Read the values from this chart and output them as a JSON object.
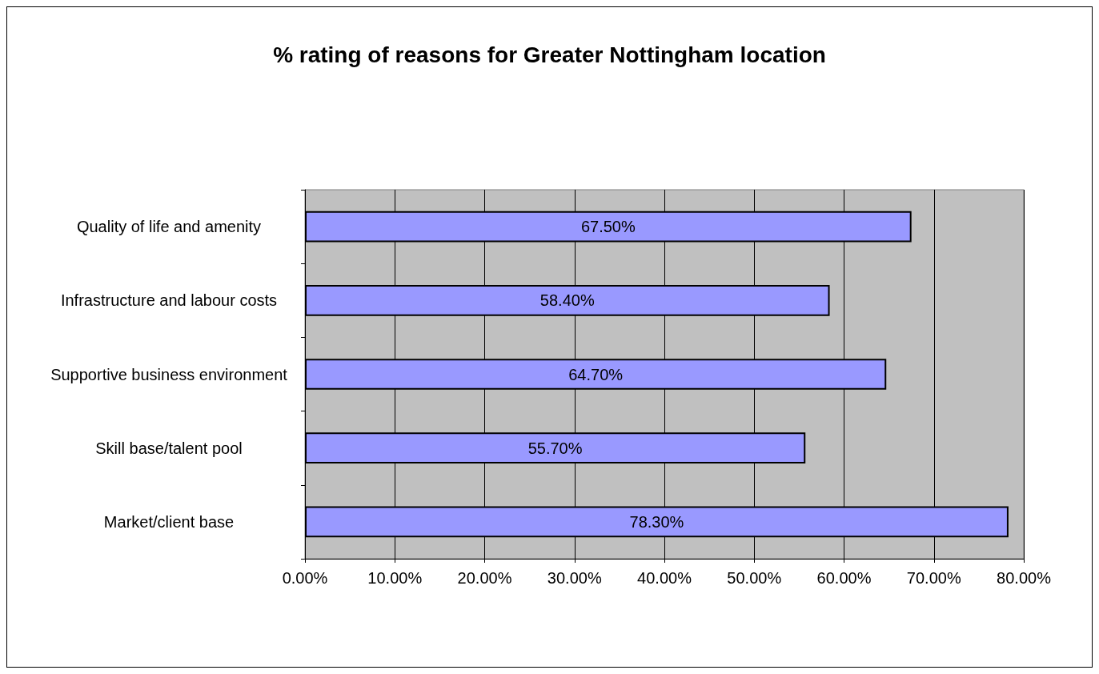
{
  "chart_data": {
    "type": "bar",
    "orientation": "horizontal",
    "title": "% rating of reasons for Greater Nottingham location",
    "categories": [
      "Quality of life and amenity",
      "Infrastructure and labour costs",
      "Supportive business environment",
      "Skill base/talent pool",
      "Market/client base"
    ],
    "values": [
      67.5,
      58.4,
      64.7,
      55.7,
      78.3
    ],
    "value_labels": [
      "67.50%",
      "58.40%",
      "64.70%",
      "55.70%",
      "78.30%"
    ],
    "color": "#9999ff",
    "xlim": [
      0,
      80
    ],
    "xticks": [
      {
        "value": 0,
        "label": "0.00%"
      },
      {
        "value": 10,
        "label": "10.00%"
      },
      {
        "value": 20,
        "label": "20.00%"
      },
      {
        "value": 30,
        "label": "30.00%"
      },
      {
        "value": 40,
        "label": "40.00%"
      },
      {
        "value": 50,
        "label": "50.00%"
      },
      {
        "value": 60,
        "label": "60.00%"
      },
      {
        "value": 70,
        "label": "70.00%"
      },
      {
        "value": 80,
        "label": "80.00%"
      }
    ],
    "grid": "x"
  }
}
